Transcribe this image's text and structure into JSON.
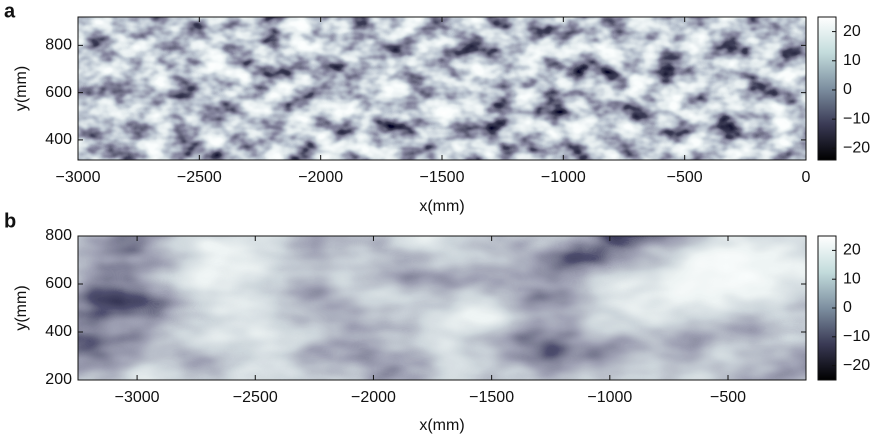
{
  "chart_data": [
    {
      "type": "heatmap",
      "panel_label": "a",
      "xlabel": "x(mm)",
      "ylabel": "y(mm)",
      "xlim": [
        -3000,
        0
      ],
      "ylim": [
        315,
        920
      ],
      "xticks": [
        {
          "value": -3000,
          "label": "−3000"
        },
        {
          "value": -2500,
          "label": "−2500"
        },
        {
          "value": -2000,
          "label": "−2000"
        },
        {
          "value": -1500,
          "label": "−1500"
        },
        {
          "value": -1000,
          "label": "−1000"
        },
        {
          "value": -500,
          "label": "−500"
        },
        0
      ],
      "yticks": [
        400,
        600,
        800
      ],
      "clim": [
        -24,
        25
      ],
      "cticks": [
        20,
        10,
        0,
        {
          "value": -10,
          "label": "−10"
        },
        {
          "value": -20,
          "label": "−20"
        }
      ],
      "colormap": [
        "#000000",
        "#3a3a55",
        "#7d8fa0",
        "#c3dcdc",
        "#ffffff"
      ]
    },
    {
      "type": "heatmap",
      "panel_label": "b",
      "xlabel": "x(mm)",
      "ylabel": "y(mm)",
      "xlim": [
        -3250,
        -170
      ],
      "ylim": [
        200,
        800
      ],
      "xticks": [
        {
          "value": -3000,
          "label": "−3000"
        },
        {
          "value": -2500,
          "label": "−2500"
        },
        {
          "value": -2000,
          "label": "−2000"
        },
        {
          "value": -1500,
          "label": "−1500"
        },
        {
          "value": -1000,
          "label": "−1000"
        },
        {
          "value": -500,
          "label": "−500"
        }
      ],
      "yticks": [
        200,
        400,
        600,
        800
      ],
      "clim": [
        -25,
        25
      ],
      "cticks": [
        20,
        10,
        0,
        {
          "value": -10,
          "label": "−10"
        },
        {
          "value": -20,
          "label": "−20"
        }
      ],
      "colormap": [
        "#000000",
        "#3a3a55",
        "#7d8fa0",
        "#c3dcdc",
        "#ffffff"
      ]
    }
  ]
}
